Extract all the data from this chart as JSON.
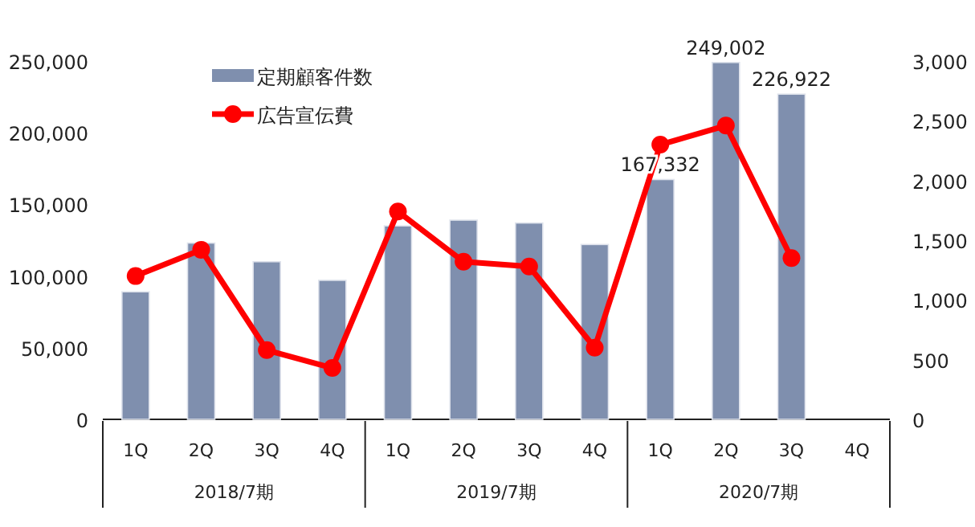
{
  "chart_data": {
    "type": "bar",
    "categories": [
      "1Q",
      "2Q",
      "3Q",
      "4Q",
      "1Q",
      "2Q",
      "3Q",
      "4Q",
      "1Q",
      "2Q",
      "3Q",
      "4Q"
    ],
    "series": [
      {
        "name": "定期顧客件数",
        "color": "#7f8fae",
        "values": [
          89000,
          123000,
          110000,
          97000,
          135000,
          139000,
          137000,
          122000,
          167332,
          249002,
          226922,
          null
        ],
        "value_labels": [
          null,
          null,
          null,
          null,
          null,
          null,
          null,
          null,
          "167,332",
          "249,002",
          "226,922",
          null
        ]
      },
      {
        "name": "広告宣伝費",
        "type": "line",
        "axis": "y2",
        "color": "#ff0000",
        "marker": "circle",
        "values": [
          1200,
          1420,
          580,
          430,
          1740,
          1320,
          1280,
          600,
          2300,
          2460,
          1350,
          null
        ]
      }
    ],
    "annotations": [
      "2018/7期",
      "2019/7期",
      "2020/7期"
    ],
    "ylim": [
      0,
      250000
    ],
    "yticks": [
      {
        "value": 0,
        "label": "0"
      },
      {
        "value": 50000,
        "label": "50,000"
      },
      {
        "value": 100000,
        "label": "100,000"
      },
      {
        "value": 150000,
        "label": "150,000"
      },
      {
        "value": 200000,
        "label": "200,000"
      },
      {
        "value": 250000,
        "label": "250,000"
      }
    ],
    "y2lim": [
      0,
      3000
    ],
    "y2ticks": [
      {
        "value": 0,
        "label": "0"
      },
      {
        "value": 500,
        "label": "500"
      },
      {
        "value": 1000,
        "label": "1,000"
      },
      {
        "value": 1500,
        "label": "1,500"
      },
      {
        "value": 2000,
        "label": "2,000"
      },
      {
        "value": 2500,
        "label": "2,500"
      },
      {
        "value": 3000,
        "label": "3,000"
      }
    ],
    "grid": false,
    "legend": "top left"
  }
}
